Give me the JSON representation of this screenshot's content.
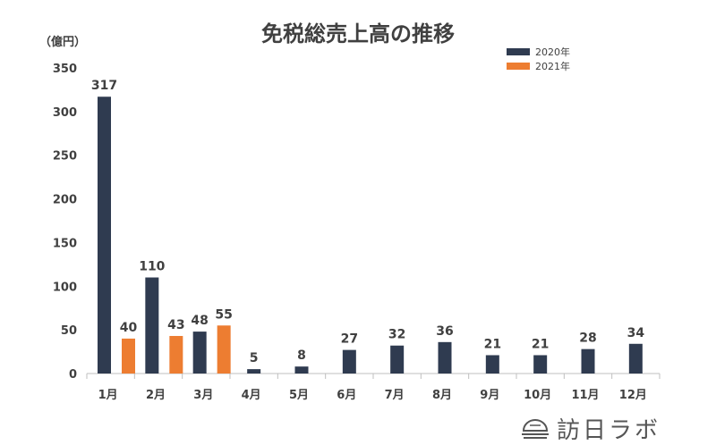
{
  "title": "免税総売上高の推移",
  "unit_label": "（億円）",
  "colors": {
    "s2020": "#2F3B50",
    "s2021": "#ED7D31",
    "text": "#404040",
    "axis": "#BFBFBF"
  },
  "legend": [
    {
      "label": "2020年",
      "color": "#2F3B50"
    },
    {
      "label": "2021年",
      "color": "#ED7D31"
    }
  ],
  "logo": {
    "text": "訪日ラボ",
    "icon": "dome-logo-icon"
  },
  "chart_data": {
    "type": "bar",
    "title": "免税総売上高の推移",
    "ylabel": "（億円）",
    "xlabel": "",
    "ylim": [
      0,
      350
    ],
    "yticks": [
      0,
      50,
      100,
      150,
      200,
      250,
      300,
      350
    ],
    "categories": [
      "1月",
      "2月",
      "3月",
      "4月",
      "5月",
      "6月",
      "7月",
      "8月",
      "9月",
      "10月",
      "11月",
      "12月"
    ],
    "series": [
      {
        "name": "2020年",
        "values": [
          317,
          110,
          48,
          5,
          8,
          27,
          32,
          36,
          21,
          21,
          28,
          34
        ]
      },
      {
        "name": "2021年",
        "values": [
          40,
          43,
          55,
          null,
          null,
          null,
          null,
          null,
          null,
          null,
          null,
          null
        ]
      }
    ],
    "legend_position": "top-right",
    "grid": false
  }
}
